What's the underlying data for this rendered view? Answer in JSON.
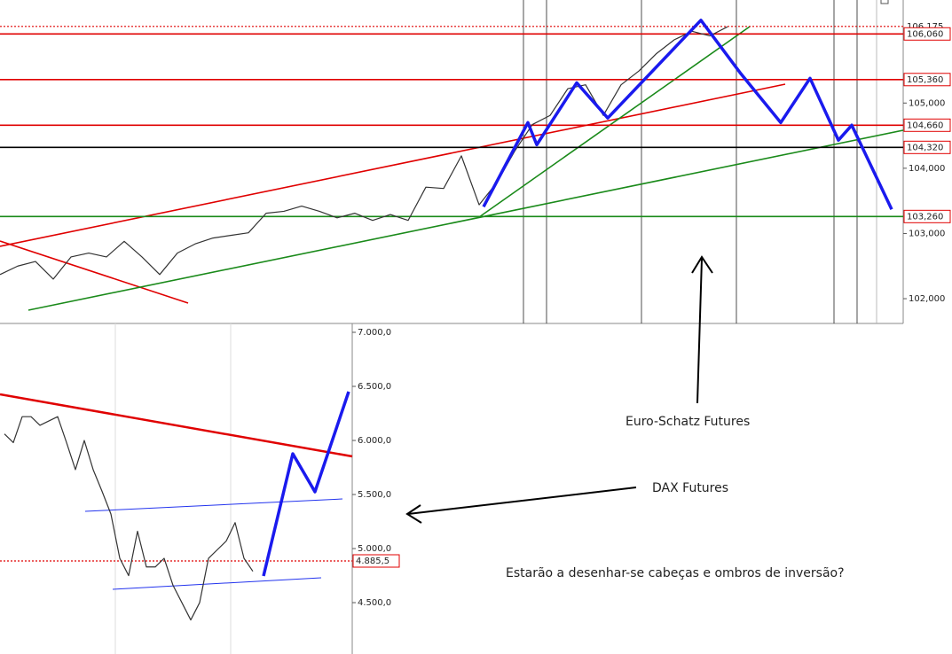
{
  "chart_data": [
    {
      "type": "line",
      "ylim": [
        101.62,
        106.58
      ],
      "yticks": [
        {
          "value": 102,
          "label": "102,000"
        },
        {
          "value": 103,
          "label": "103,000"
        },
        {
          "value": 104,
          "label": "104,000"
        },
        {
          "value": 105,
          "label": "105,000"
        }
      ],
      "series": [
        {
          "color": "#333333",
          "values": [
            102.37,
            102.5,
            102.57,
            102.3,
            102.64,
            102.7,
            102.64,
            102.88,
            102.64,
            102.37,
            102.7,
            102.84,
            102.93,
            102.97,
            103.01,
            103.31,
            103.34,
            103.42,
            103.34,
            103.24,
            103.31,
            103.2,
            103.29,
            103.2,
            103.71,
            103.69,
            104.19,
            103.44,
            103.78,
            104.26,
            104.67,
            104.81,
            105.22,
            105.28,
            104.81,
            105.28,
            105.49,
            105.76,
            105.97,
            106.1,
            106.03,
            106.17
          ]
        },
        {
          "color": "#1a1aee",
          "x": [
            27.25,
            29.75,
            30.25,
            32.5,
            34.25,
            39.5,
            41.75,
            44,
            45.65,
            47.25,
            48,
            50.25
          ],
          "values": [
            103.41,
            104.7,
            104.36,
            105.31,
            104.77,
            106.27,
            105.45,
            104.7,
            105.38,
            104.43,
            104.66,
            103.37
          ]
        }
      ],
      "levels": [
        {
          "value": 106.175,
          "label": "106,175",
          "color": "#e00000",
          "dash": true
        },
        {
          "value": 106.06,
          "label": "106,060",
          "color": "#e00000"
        },
        {
          "value": 105.36,
          "label": "105,360",
          "color": "#e00000"
        },
        {
          "value": 104.66,
          "label": "104,660",
          "color": "#e00000"
        },
        {
          "value": 104.32,
          "label": "104,320",
          "color": "#000000"
        },
        {
          "value": 103.26,
          "label": "103,260",
          "color": "#1a8a1a"
        }
      ]
    },
    {
      "type": "line",
      "ylim": [
        4025,
        7082
      ],
      "yticks": [
        {
          "value": 4500,
          "label": "4.500,0"
        },
        {
          "value": 5000,
          "label": "5.000,0"
        },
        {
          "value": 5500,
          "label": "5.500,0"
        },
        {
          "value": 6000,
          "label": "6.000,0"
        },
        {
          "value": 6500,
          "label": "6.500,0"
        },
        {
          "value": 7000,
          "label": "7.000,0"
        }
      ],
      "series": [
        {
          "color": "#333333",
          "values": [
            6060,
            5980,
            6220,
            6220,
            6140,
            6180,
            6220,
            5980,
            5730,
            6000,
            5730,
            5530,
            5320,
            4910,
            4750,
            5160,
            4830,
            4830,
            4910,
            4660,
            4500,
            4340,
            4500,
            4910,
            4990,
            5070,
            5240,
            4910,
            4790
          ]
        },
        {
          "color": "#1a1aee",
          "x": [
            29.2,
            32.5,
            35,
            38.8
          ],
          "values": [
            4746,
            5877,
            5525,
            6451
          ]
        }
      ],
      "levels": [
        {
          "value": 4885.5,
          "label": "4.885,5",
          "color": "#e00000",
          "dash": true
        }
      ]
    }
  ],
  "notes": [
    "Euro-Schatz Futures",
    "DAX Futures",
    "Estarão a desenhar-se cabeças e ombros de inversão?"
  ]
}
